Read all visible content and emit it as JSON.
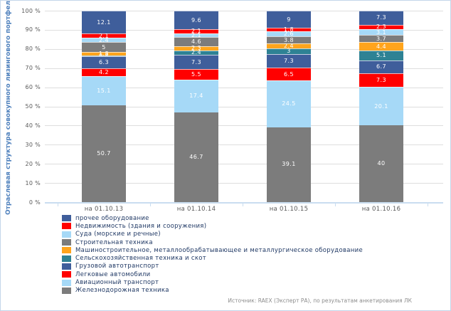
{
  "chart_data": {
    "type": "bar",
    "stacked": true,
    "title": "",
    "ylabel": "Отраслевая структура совокупного лизингового портфеля",
    "xlabel": "",
    "ylim": [
      0,
      100
    ],
    "ytick_step": 10,
    "ytick_suffix": " %",
    "grid": true,
    "value_labels": true,
    "legend_position": "bottom-left",
    "categories": [
      "на 01.10.13",
      "на 01.10.14",
      "на 01.10.15",
      "на 01.10.16"
    ],
    "series": [
      {
        "name": "Железнодорожная техника",
        "color": "#7C7C7C",
        "values": [
          50.7,
          46.7,
          39.1,
          40
        ]
      },
      {
        "name": "Авиационный транспорт",
        "color": "#A6D9F7",
        "values": [
          15.1,
          17.4,
          24.5,
          20.1
        ]
      },
      {
        "name": "Легковые автомобили",
        "color": "#FF0000",
        "values": [
          4.2,
          5.5,
          6.5,
          7.3
        ]
      },
      {
        "name": "Грузовой автотранспорт",
        "color": "#3F5E9B",
        "values": [
          6.3,
          7.3,
          7.3,
          6.7
        ]
      },
      {
        "name": "Сельскохозяйственная техника и скот",
        "color": "#2E8294",
        "values": [
          0.4,
          2.4,
          3,
          5.1
        ]
      },
      {
        "name": "Машиностроительное, металлообрабатывающее и металлургическое оборудование",
        "color": "#FFA41C",
        "values": [
          1.8,
          2.3,
          2.4,
          4.4
        ]
      },
      {
        "name": "Строительная техника",
        "color": "#7C7C7C",
        "values": [
          5,
          4.6,
          3.8,
          3.7
        ]
      },
      {
        "name": "Суда (морские и речные)",
        "color": "#A6D9F7",
        "values": [
          2.4,
          2.1,
          2.6,
          3.1
        ]
      },
      {
        "name": "Недвижимость (здания и сооружения)",
        "color": "#FF0000",
        "values": [
          2.1,
          2.1,
          1.8,
          2.3
        ]
      },
      {
        "name": "прочее оборудование",
        "color": "#3F5E9B",
        "values": [
          12.1,
          9.6,
          9,
          7.3
        ]
      }
    ]
  },
  "source": {
    "text": "Источник: RAEX (Эксперт РА), по результатам анкетирования ЛК"
  }
}
